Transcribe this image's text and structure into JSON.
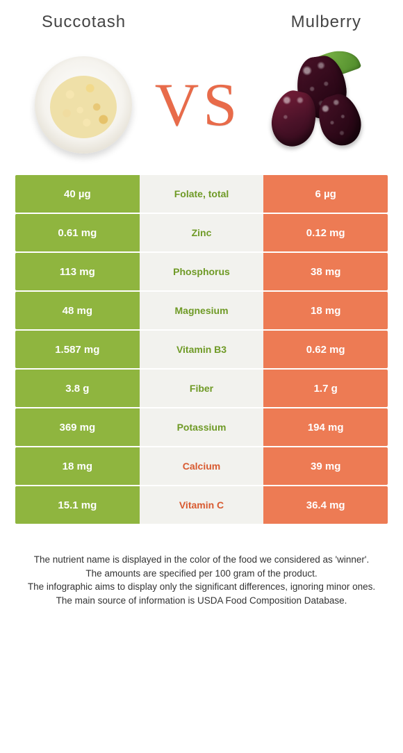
{
  "titles": {
    "left": "Succotash",
    "right": "Mulberry"
  },
  "vs_label": "VS",
  "colors": {
    "left_bg": "#8fb53f",
    "right_bg": "#ed7b54",
    "mid_bg": "#f2f2ee",
    "left_text": "#6f9a26",
    "right_text": "#d85a30",
    "vs": "#e86b4a"
  },
  "rows": [
    {
      "left": "40 µg",
      "name": "Folate, total",
      "right": "6 µg",
      "winner": "left"
    },
    {
      "left": "0.61 mg",
      "name": "Zinc",
      "right": "0.12 mg",
      "winner": "left"
    },
    {
      "left": "113 mg",
      "name": "Phosphorus",
      "right": "38 mg",
      "winner": "left"
    },
    {
      "left": "48 mg",
      "name": "Magnesium",
      "right": "18 mg",
      "winner": "left"
    },
    {
      "left": "1.587 mg",
      "name": "Vitamin B3",
      "right": "0.62 mg",
      "winner": "left"
    },
    {
      "left": "3.8 g",
      "name": "Fiber",
      "right": "1.7 g",
      "winner": "left"
    },
    {
      "left": "369 mg",
      "name": "Potassium",
      "right": "194 mg",
      "winner": "left"
    },
    {
      "left": "18 mg",
      "name": "Calcium",
      "right": "39 mg",
      "winner": "right"
    },
    {
      "left": "15.1 mg",
      "name": "Vitamin C",
      "right": "36.4 mg",
      "winner": "right"
    }
  ],
  "footer": [
    "The nutrient name is displayed in the color of the food we considered as 'winner'.",
    "The amounts are specified per 100 gram of the product.",
    "The infographic aims to display only the significant differences, ignoring minor ones.",
    "The main source of information is USDA Food Composition Database."
  ]
}
